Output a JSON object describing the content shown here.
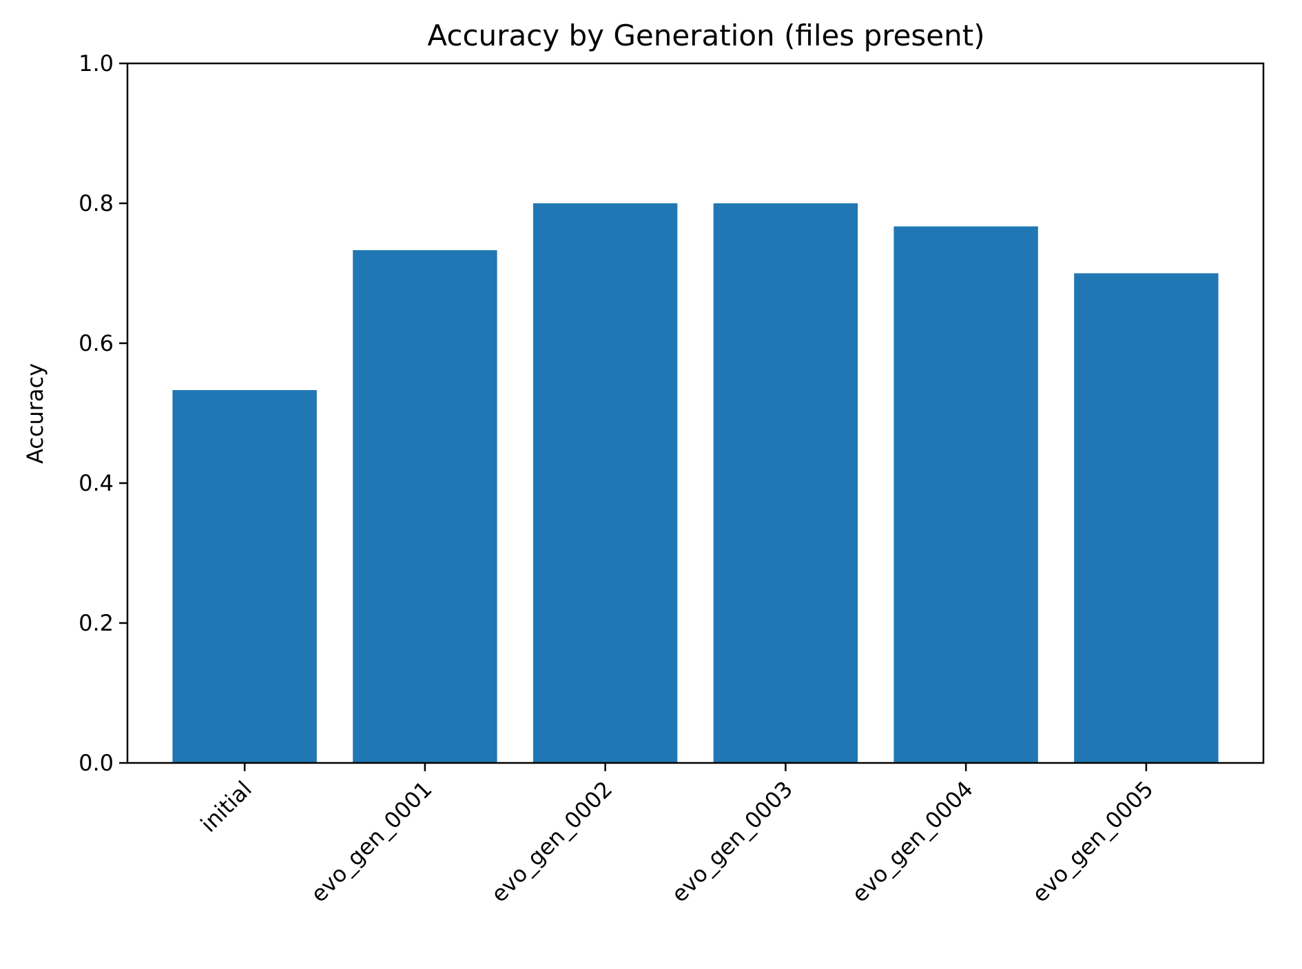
{
  "chart_data": {
    "type": "bar",
    "title": "Accuracy by Generation (files present)",
    "xlabel": "",
    "ylabel": "Accuracy",
    "categories": [
      "initial",
      "evo_gen_0001",
      "evo_gen_0002",
      "evo_gen_0003",
      "evo_gen_0004",
      "evo_gen_0005"
    ],
    "values": [
      0.533,
      0.733,
      0.8,
      0.8,
      0.767,
      0.7
    ],
    "ylim": [
      0,
      1.0
    ],
    "yticks": [
      "0.0",
      "0.2",
      "0.4",
      "0.6",
      "0.8",
      "1.0"
    ],
    "bar_color": "#2077b4",
    "grid": false,
    "legend": "none"
  }
}
